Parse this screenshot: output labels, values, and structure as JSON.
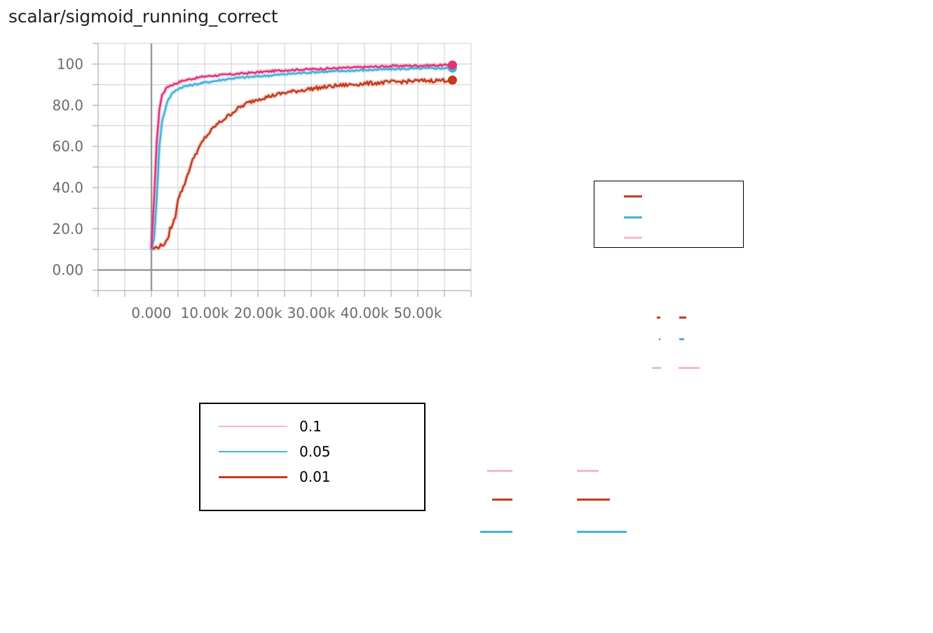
{
  "title": "scalar/sigmoid_running_correct",
  "colors": {
    "series_0.1": "#e0337a",
    "series_0.1_legend": "#f5b8ce",
    "series_0.05": "#3fb3e0",
    "series_0.01": "#c23a1c",
    "grid": "#cccccc",
    "axis": "#9e9e9e"
  },
  "legend": {
    "entries": [
      {
        "label": "0.1",
        "color": "#f5b8ce"
      },
      {
        "label": "0.05",
        "color": "#4ab0dc"
      },
      {
        "label": "0.01",
        "color": "#c03d20"
      }
    ]
  },
  "chart_data": {
    "type": "line",
    "title": "scalar/sigmoid_running_correct",
    "xlabel": "",
    "ylabel": "",
    "xlim": [
      -10000,
      60000
    ],
    "ylim": [
      -10,
      110
    ],
    "x_ticks": [
      0,
      10000,
      20000,
      30000,
      40000,
      50000
    ],
    "x_tick_labels": [
      "0.000",
      "10.00k",
      "20.00k",
      "30.00k",
      "40.00k",
      "50.00k"
    ],
    "y_ticks": [
      0,
      20,
      40,
      60,
      80,
      100
    ],
    "y_tick_labels": [
      "0.00",
      "20.0",
      "40.0",
      "60.0",
      "80.0",
      "100"
    ],
    "grid": true,
    "series": [
      {
        "name": "0.1",
        "color": "#e0337a",
        "x": [
          0,
          500,
          1000,
          1500,
          2000,
          3000,
          4000,
          5000,
          6000,
          8000,
          10000,
          15000,
          20000,
          25000,
          30000,
          35000,
          40000,
          45000,
          50000,
          56500
        ],
        "y": [
          10,
          35,
          62,
          78,
          85,
          89,
          90,
          91,
          92,
          93,
          94,
          95,
          96,
          97,
          97.5,
          98,
          98.5,
          99,
          99.2,
          99.5
        ]
      },
      {
        "name": "0.05",
        "color": "#3fb3e0",
        "x": [
          0,
          500,
          1000,
          1500,
          2000,
          3000,
          4000,
          5000,
          6000,
          8000,
          10000,
          15000,
          20000,
          25000,
          30000,
          35000,
          40000,
          45000,
          50000,
          56500
        ],
        "y": [
          10,
          15,
          35,
          60,
          72,
          82,
          86,
          88,
          89,
          90,
          91,
          93,
          94,
          95,
          96,
          96.5,
          97,
          97.5,
          97.8,
          98
        ]
      },
      {
        "name": "0.01",
        "color": "#c23a1c",
        "x": [
          0,
          1000,
          2000,
          3000,
          3500,
          4000,
          4500,
          5000,
          6000,
          7000,
          8000,
          10000,
          12000,
          14000,
          16000,
          18000,
          20000,
          25000,
          30000,
          35000,
          40000,
          45000,
          50000,
          56500
        ],
        "y": [
          10,
          11,
          12,
          14,
          20,
          22,
          26,
          35,
          40,
          48,
          55,
          64,
          70,
          74,
          78,
          81,
          83,
          86,
          88,
          89.5,
          90.5,
          91.2,
          91.8,
          92.2
        ]
      }
    ]
  }
}
